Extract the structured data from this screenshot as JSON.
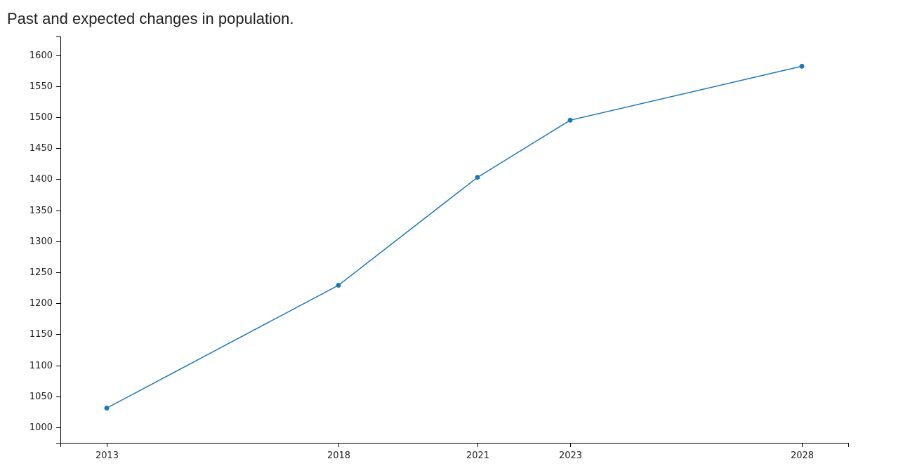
{
  "chart_data": {
    "type": "line",
    "title": "Past and expected changes in population.",
    "xlabel": "",
    "ylabel": "",
    "x": [
      2013,
      2018,
      2021,
      2023,
      2028
    ],
    "series": [
      {
        "values": [
          1031,
          1229,
          1403,
          1495,
          1582
        ]
      }
    ],
    "xlim": [
      2012,
      2029
    ],
    "ylim": [
      975,
      1630
    ],
    "x_ticks": [
      2013,
      2018,
      2021,
      2023,
      2028
    ],
    "y_ticks": [
      1000,
      1050,
      1100,
      1150,
      1200,
      1250,
      1300,
      1350,
      1400,
      1450,
      1500,
      1550,
      1600
    ],
    "grid": false,
    "legend": "none",
    "line_color": "#1f77b4",
    "axis_color": "#000000"
  }
}
